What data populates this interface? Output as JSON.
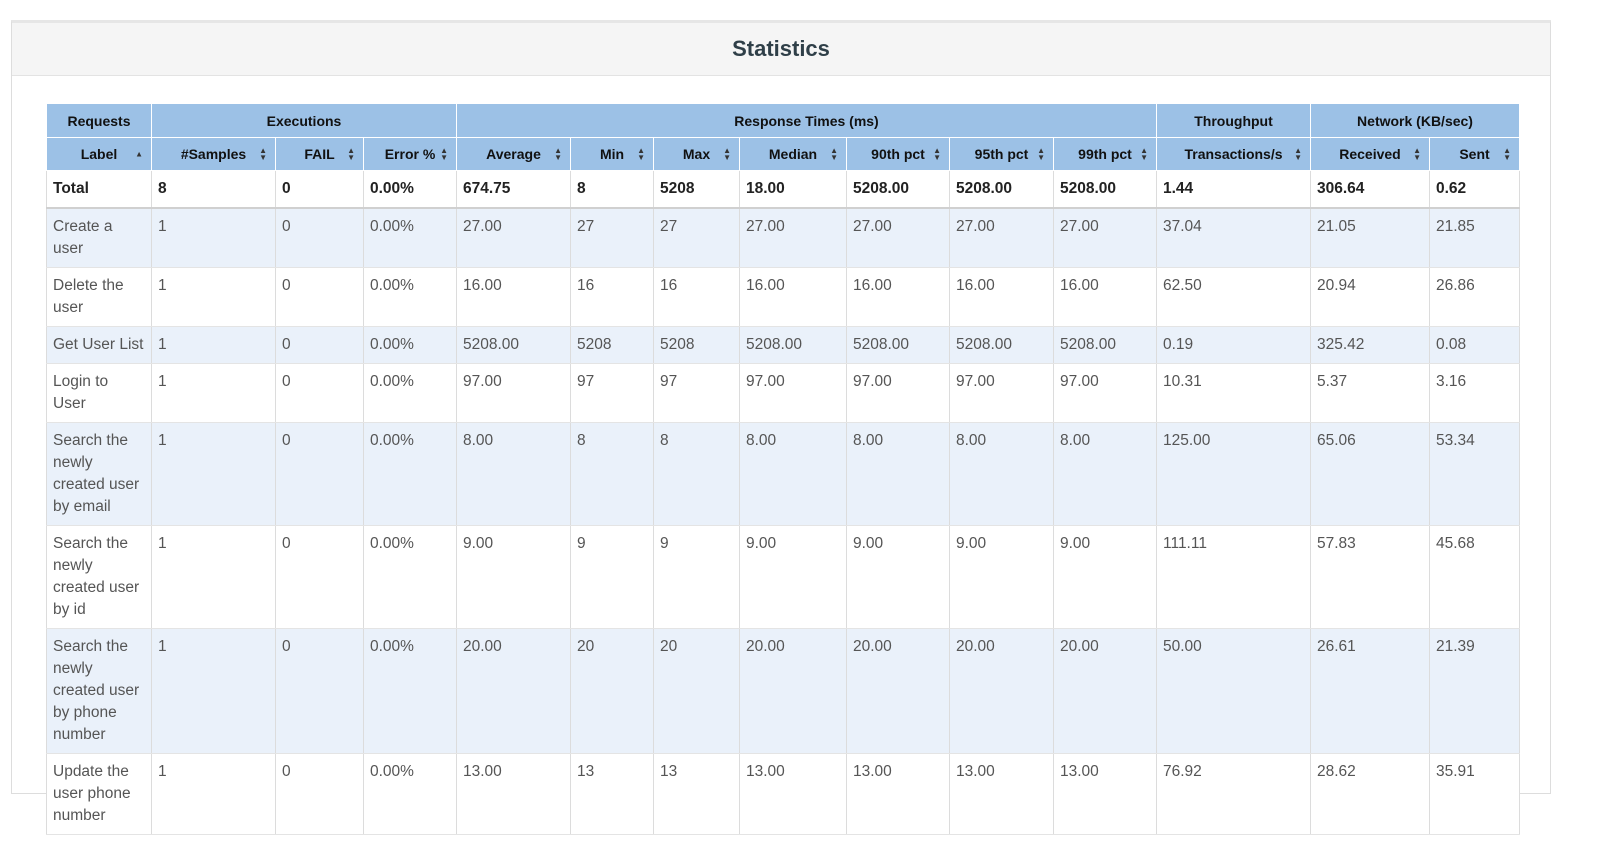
{
  "title": "Statistics",
  "group_headers": [
    {
      "label": "Requests",
      "span": 1
    },
    {
      "label": "Executions",
      "span": 3
    },
    {
      "label": "Response Times (ms)",
      "span": 7
    },
    {
      "label": "Throughput",
      "span": 1
    },
    {
      "label": "Network (KB/sec)",
      "span": 2
    }
  ],
  "columns": [
    {
      "label": "Label",
      "sort": "asc"
    },
    {
      "label": "#Samples",
      "sort": "both"
    },
    {
      "label": "FAIL",
      "sort": "both"
    },
    {
      "label": "Error %",
      "sort": "both"
    },
    {
      "label": "Average",
      "sort": "both"
    },
    {
      "label": "Min",
      "sort": "both"
    },
    {
      "label": "Max",
      "sort": "both"
    },
    {
      "label": "Median",
      "sort": "both"
    },
    {
      "label": "90th pct",
      "sort": "both"
    },
    {
      "label": "95th pct",
      "sort": "both"
    },
    {
      "label": "99th pct",
      "sort": "both"
    },
    {
      "label": "Transactions/s",
      "sort": "both"
    },
    {
      "label": "Received",
      "sort": "both"
    },
    {
      "label": "Sent",
      "sort": "both"
    }
  ],
  "total": [
    "Total",
    "8",
    "0",
    "0.00%",
    "674.75",
    "8",
    "5208",
    "18.00",
    "5208.00",
    "5208.00",
    "5208.00",
    "1.44",
    "306.64",
    "0.62"
  ],
  "rows": [
    [
      "Create a user",
      "1",
      "0",
      "0.00%",
      "27.00",
      "27",
      "27",
      "27.00",
      "27.00",
      "27.00",
      "27.00",
      "37.04",
      "21.05",
      "21.85"
    ],
    [
      "Delete the user",
      "1",
      "0",
      "0.00%",
      "16.00",
      "16",
      "16",
      "16.00",
      "16.00",
      "16.00",
      "16.00",
      "62.50",
      "20.94",
      "26.86"
    ],
    [
      "Get User List",
      "1",
      "0",
      "0.00%",
      "5208.00",
      "5208",
      "5208",
      "5208.00",
      "5208.00",
      "5208.00",
      "5208.00",
      "0.19",
      "325.42",
      "0.08"
    ],
    [
      "Login to User",
      "1",
      "0",
      "0.00%",
      "97.00",
      "97",
      "97",
      "97.00",
      "97.00",
      "97.00",
      "97.00",
      "10.31",
      "5.37",
      "3.16"
    ],
    [
      "Search the newly created user by email",
      "1",
      "0",
      "0.00%",
      "8.00",
      "8",
      "8",
      "8.00",
      "8.00",
      "8.00",
      "8.00",
      "125.00",
      "65.06",
      "53.34"
    ],
    [
      "Search the newly created user by id",
      "1",
      "0",
      "0.00%",
      "9.00",
      "9",
      "9",
      "9.00",
      "9.00",
      "9.00",
      "9.00",
      "111.11",
      "57.83",
      "45.68"
    ],
    [
      "Search the newly created user by phone number",
      "1",
      "0",
      "0.00%",
      "20.00",
      "20",
      "20",
      "20.00",
      "20.00",
      "20.00",
      "20.00",
      "50.00",
      "26.61",
      "21.39"
    ],
    [
      "Update the user phone number",
      "1",
      "0",
      "0.00%",
      "13.00",
      "13",
      "13",
      "13.00",
      "13.00",
      "13.00",
      "13.00",
      "76.92",
      "28.62",
      "35.91"
    ]
  ],
  "colors": {
    "header_bg": "#9cc1e6",
    "row_alt_bg": "#eaf1fa",
    "title_color": "#2f3f48"
  }
}
